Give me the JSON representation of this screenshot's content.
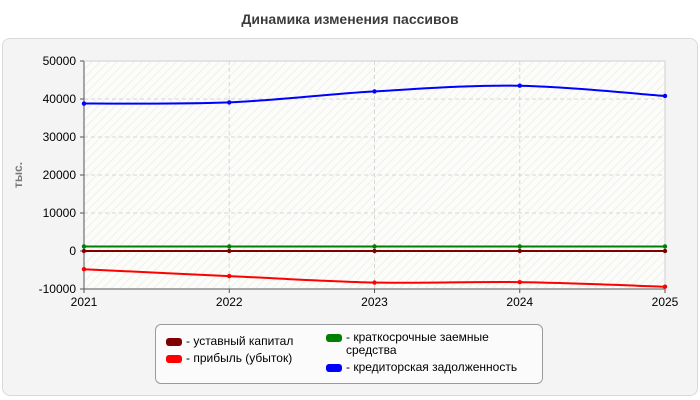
{
  "chart_data": {
    "type": "line",
    "title": "Динамика изменения пассивов",
    "ylabel": "тыс.",
    "xlabel": "",
    "x": [
      "2021",
      "2022",
      "2023",
      "2024",
      "2025"
    ],
    "ylim": [
      -10000,
      50000
    ],
    "yticks": [
      "50000",
      "40000",
      "30000",
      "20000",
      "10000",
      "0",
      "-10000"
    ],
    "grid": true,
    "legend_position": "bottom",
    "series": [
      {
        "name": "- уставный капитал",
        "color": "#800000",
        "values": [
          0,
          0,
          0,
          0,
          0
        ]
      },
      {
        "name": "- прибыль (убыток)",
        "color": "#ff0000",
        "values": [
          -4800,
          -6600,
          -8300,
          -8200,
          -9400
        ]
      },
      {
        "name": "- краткосрочные заемные средства",
        "color": "#008000",
        "values": [
          1200,
          1200,
          1200,
          1200,
          1200
        ]
      },
      {
        "name": "- кредиторская задолженность",
        "color": "#0000ff",
        "values": [
          38800,
          39100,
          42000,
          43500,
          40800
        ]
      }
    ]
  }
}
